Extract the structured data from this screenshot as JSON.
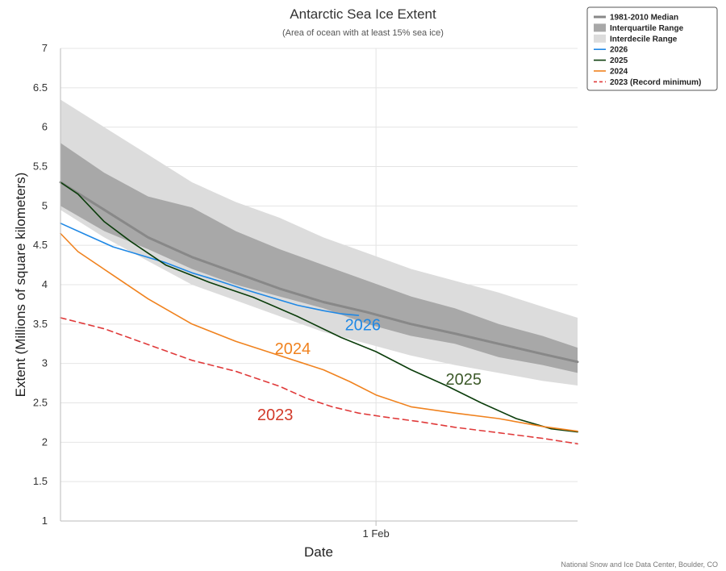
{
  "chart_data": {
    "type": "area",
    "title": "Antarctic Sea Ice Extent",
    "subtitle": "(Area of ocean with at least 15% sea ice)",
    "xlabel": "Date",
    "ylabel": "Extent (Millions of square kilometers)",
    "ylim": [
      1,
      7
    ],
    "xlim": [
      0,
      59
    ],
    "yticks": [
      "1",
      "1.5",
      "2",
      "2.5",
      "3",
      "3.5",
      "4",
      "4.5",
      "5",
      "5.5",
      "6",
      "6.5",
      "7"
    ],
    "xticks": [
      {
        "x": 36,
        "label": "1 Feb"
      }
    ],
    "grid": true,
    "legend_position": "top-right",
    "bands": [
      {
        "name": "Interdecile Range",
        "color": "#dcdcdc",
        "x": [
          0,
          5,
          10,
          15,
          20,
          25,
          30,
          35,
          40,
          45,
          50,
          55,
          59
        ],
        "upper": [
          6.35,
          6.0,
          5.65,
          5.3,
          5.05,
          4.85,
          4.6,
          4.4,
          4.2,
          4.05,
          3.9,
          3.72,
          3.58
        ],
        "lower": [
          4.95,
          4.6,
          4.3,
          4.0,
          3.8,
          3.6,
          3.4,
          3.25,
          3.1,
          2.98,
          2.88,
          2.78,
          2.72
        ]
      },
      {
        "name": "Interquartile Range",
        "color": "#a8a8a8",
        "x": [
          0,
          5,
          10,
          15,
          20,
          25,
          30,
          35,
          40,
          45,
          50,
          55,
          59
        ],
        "upper": [
          5.8,
          5.42,
          5.12,
          4.98,
          4.68,
          4.45,
          4.25,
          4.05,
          3.85,
          3.7,
          3.5,
          3.35,
          3.2
        ],
        "lower": [
          5.0,
          4.68,
          4.45,
          4.2,
          4.0,
          3.85,
          3.7,
          3.5,
          3.35,
          3.25,
          3.08,
          2.98,
          2.88
        ]
      }
    ],
    "series": [
      {
        "name": "1981-2010 Median",
        "color": "#888888",
        "dash": "",
        "x": [
          0,
          5,
          10,
          15,
          20,
          25,
          30,
          35,
          40,
          45,
          50,
          55,
          59
        ],
        "values": [
          5.3,
          4.95,
          4.6,
          4.35,
          4.15,
          3.95,
          3.78,
          3.65,
          3.5,
          3.38,
          3.25,
          3.12,
          3.02
        ]
      },
      {
        "name": "Interquartile Range",
        "color": "#a8a8a8",
        "legend_only": true,
        "legend_kind": "band"
      },
      {
        "name": "Interdecile Range",
        "color": "#dcdcdc",
        "legend_only": true,
        "legend_kind": "band"
      },
      {
        "name": "2026",
        "color": "#1f88e5",
        "dash": "",
        "x": [
          0,
          3,
          6,
          9,
          12,
          15,
          18,
          21,
          24,
          27,
          30,
          32,
          34
        ],
        "values": [
          4.78,
          4.63,
          4.48,
          4.38,
          4.28,
          4.15,
          4.05,
          3.94,
          3.84,
          3.74,
          3.67,
          3.63,
          3.61
        ]
      },
      {
        "name": "2025",
        "color": "#0b3d0b",
        "dash": "",
        "x": [
          0,
          2,
          5,
          8,
          12,
          17,
          22,
          27,
          32,
          36,
          40,
          44,
          48,
          52,
          56,
          59
        ],
        "values": [
          5.3,
          5.15,
          4.8,
          4.55,
          4.25,
          4.03,
          3.84,
          3.6,
          3.33,
          3.15,
          2.92,
          2.72,
          2.5,
          2.3,
          2.17,
          2.13
        ]
      },
      {
        "name": "2024",
        "color": "#f0821e",
        "dash": "",
        "x": [
          0,
          2,
          6,
          10,
          15,
          20,
          25,
          30,
          33,
          36,
          40,
          45,
          50,
          55,
          59
        ],
        "values": [
          4.65,
          4.42,
          4.12,
          3.82,
          3.5,
          3.28,
          3.1,
          2.92,
          2.77,
          2.6,
          2.45,
          2.37,
          2.3,
          2.2,
          2.14
        ]
      },
      {
        "name": "2023 (Record minimum)",
        "color": "#e03a3a",
        "dash": "7,5",
        "x": [
          0,
          5,
          10,
          15,
          20,
          25,
          28,
          31,
          34,
          37,
          41,
          45,
          50,
          55,
          59
        ],
        "values": [
          3.58,
          3.44,
          3.24,
          3.04,
          2.9,
          2.71,
          2.56,
          2.45,
          2.37,
          2.32,
          2.26,
          2.19,
          2.12,
          2.05,
          1.98
        ]
      }
    ],
    "annotations": [
      {
        "text": "2026",
        "x": 34.5,
        "y": 3.42,
        "color": "#1f88e5"
      },
      {
        "text": "2024",
        "x": 26.5,
        "y": 3.12,
        "color": "#f0821e"
      },
      {
        "text": "2025",
        "x": 46.0,
        "y": 2.73,
        "color": "#3d5a2a"
      },
      {
        "text": "2023",
        "x": 24.5,
        "y": 2.28,
        "color": "#d23a2a"
      }
    ],
    "credit": "National Snow and Ice Data Center, Boulder, CO"
  }
}
